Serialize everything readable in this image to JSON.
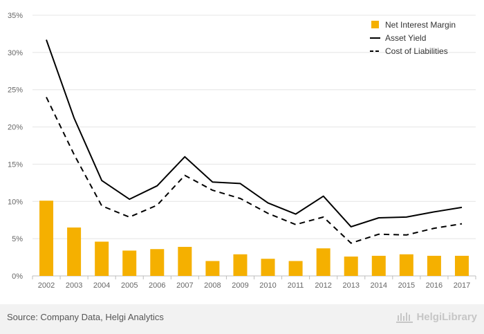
{
  "chart_data": {
    "type": "bar",
    "categories": [
      "2002",
      "2003",
      "2004",
      "2005",
      "2006",
      "2007",
      "2008",
      "2009",
      "2010",
      "2011",
      "2012",
      "2013",
      "2014",
      "2015",
      "2016",
      "2017"
    ],
    "series": [
      {
        "name": "Net Interest Margin",
        "kind": "bar",
        "color": "#f5b000",
        "values": [
          10.1,
          6.5,
          4.6,
          3.4,
          3.6,
          3.9,
          2.0,
          2.9,
          2.3,
          2.0,
          3.7,
          2.6,
          2.7,
          2.9,
          2.7,
          2.7
        ]
      },
      {
        "name": "Asset Yield",
        "kind": "line",
        "dash": "solid",
        "color": "#000000",
        "values": [
          31.7,
          21.2,
          12.8,
          10.3,
          12.1,
          16.0,
          12.6,
          12.4,
          9.8,
          8.3,
          10.7,
          6.6,
          7.8,
          7.9,
          8.6,
          9.2
        ]
      },
      {
        "name": "Cost of Liabilities",
        "kind": "line",
        "dash": "dashed",
        "color": "#000000",
        "values": [
          24.0,
          16.3,
          9.4,
          7.9,
          9.5,
          13.5,
          11.5,
          10.4,
          8.4,
          6.9,
          7.9,
          4.4,
          5.6,
          5.5,
          6.4,
          7.0
        ]
      }
    ],
    "y_ticks": [
      "0%",
      "5%",
      "10%",
      "15%",
      "20%",
      "25%",
      "30%",
      "35%"
    ],
    "ylim": [
      0,
      35
    ],
    "grid": true,
    "legend_position": "top-right",
    "title": "",
    "xlabel": "",
    "ylabel": ""
  },
  "footer": {
    "source": "Source: Company Data, Helgi Analytics",
    "logo_text": "HelgiLibrary"
  }
}
